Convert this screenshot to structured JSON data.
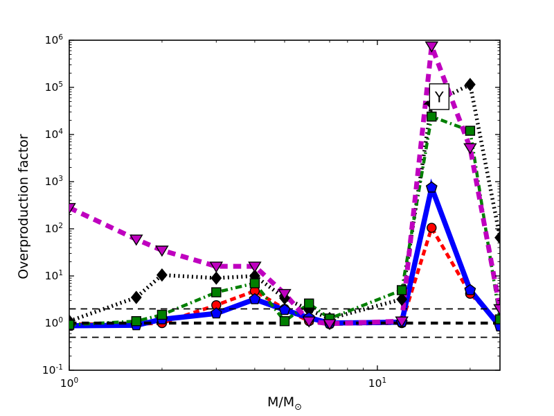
{
  "figure": {
    "background": "#ffffff",
    "axis_color": "#000000"
  },
  "chart_data": {
    "type": "line",
    "title": "",
    "xlabel": "M/M⊙",
    "xlabel_main": "M/M",
    "xlabel_sub": "⊙",
    "ylabel": "Overproduction factor",
    "x_scale": "log",
    "y_scale": "log",
    "xlim": [
      1,
      25
    ],
    "ylim": [
      0.1,
      1000000
    ],
    "grid": false,
    "legend": "none",
    "x_major_ticks": [
      {
        "value": 1,
        "base": "10",
        "exp": "0"
      },
      {
        "value": 10,
        "base": "10",
        "exp": "1"
      }
    ],
    "x_minor_ticks": [
      2,
      3,
      4,
      5,
      6,
      7,
      8,
      9,
      20
    ],
    "y_major_tick_exponents": [
      "6",
      "5",
      "4",
      "3",
      "2",
      "1",
      "0",
      "-1"
    ],
    "x": [
      1,
      1.65,
      2,
      3,
      4,
      5,
      6,
      7,
      12,
      15,
      20,
      25
    ],
    "series": [
      {
        "id": "black",
        "name": "black dotted line with diamond markers",
        "color": "#000000",
        "linestyle": "dotted",
        "linewidth": 5.5,
        "marker": "diamond",
        "above_reference_lines": false,
        "values": [
          1.1,
          3.5,
          10.5,
          9,
          10,
          3.4,
          1.9,
          1.25,
          3.2,
          45000,
          115000,
          65
        ]
      },
      {
        "id": "red",
        "name": "red dashed line with circle markers",
        "color": "#ff0000",
        "linestyle": "dashed",
        "linewidth": 5,
        "marker": "circle",
        "above_reference_lines": false,
        "values": [
          0.95,
          0.95,
          1.0,
          2.4,
          4.8,
          2.0,
          1.1,
          0.95,
          1.0,
          105,
          4.2,
          1.0
        ]
      },
      {
        "id": "blue",
        "name": "blue thick solid line with pentagon markers",
        "color": "#0000ff",
        "linestyle": "solid",
        "linewidth": 7.5,
        "marker": "pentagon",
        "above_reference_lines": false,
        "values": [
          0.88,
          0.9,
          1.2,
          1.6,
          3.2,
          1.9,
          1.3,
          1.0,
          1.05,
          750,
          5.0,
          0.85
        ]
      },
      {
        "id": "green",
        "name": "green dash-dot line with square markers",
        "color": "#007f00",
        "linestyle": "dashdot",
        "linewidth": 4.5,
        "marker": "square",
        "above_reference_lines": false,
        "values": [
          0.92,
          1.1,
          1.5,
          4.5,
          7.0,
          1.1,
          2.6,
          1.25,
          5.0,
          24000,
          12000,
          1.2
        ]
      },
      {
        "id": "magenta",
        "name": "magenta thick dashed line with down-triangle markers",
        "color": "#bf00bf",
        "linestyle": "dashed",
        "linewidth": 7,
        "marker": "triangle-down",
        "above_reference_lines": true,
        "values": [
          280,
          60,
          35,
          16,
          16,
          4.2,
          1.1,
          0.97,
          1.1,
          750000,
          5200,
          2.0
        ]
      }
    ],
    "reference_lines": [
      {
        "y": 2,
        "weight": "thin",
        "color": "#000000",
        "linestyle": "dashed"
      },
      {
        "y": 1,
        "weight": "thick",
        "color": "#000000",
        "linestyle": "dashed"
      },
      {
        "y": 0.5,
        "weight": "thin",
        "color": "#000000",
        "linestyle": "dashed"
      }
    ],
    "annotation": {
      "text": "Y",
      "target_x": 14.1,
      "target_y": 43000
    }
  }
}
